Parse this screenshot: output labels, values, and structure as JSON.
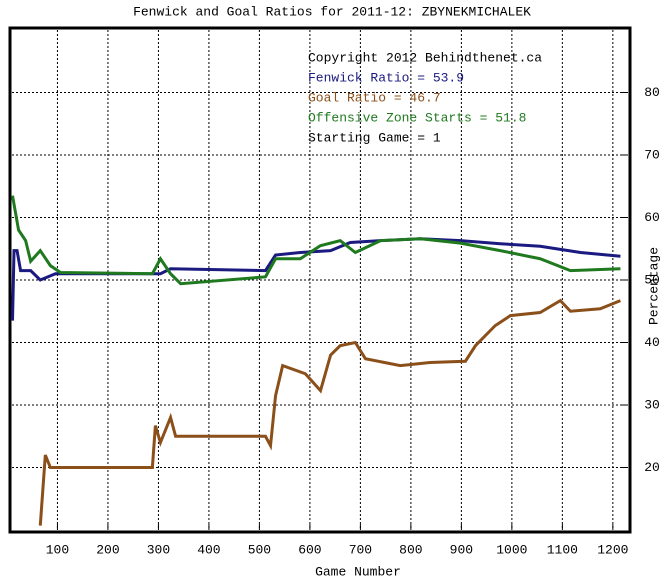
{
  "chart_data": {
    "type": "line",
    "title": "Fenwick and Goal Ratios for 2011-12: ZBYNEKMICHALEK",
    "x_label": "Game Number",
    "y_label": "Percentage",
    "annotations": [
      "Copyright 2012 Behindthenet.ca",
      "Starting Game = 1"
    ],
    "xlim": [
      10,
      1230
    ],
    "ylim": [
      10,
      90
    ],
    "xticks": [
      100,
      200,
      300,
      400,
      500,
      600,
      700,
      800,
      900,
      1000,
      1100,
      1200
    ],
    "yticks": [
      20,
      30,
      40,
      50,
      60,
      70,
      80
    ],
    "grid": true,
    "series": [
      {
        "name": "Fenwick Ratio = 53.9",
        "color": "#1a1a80",
        "x": [
          11,
          14,
          20,
          27,
          47,
          66,
          96,
          304,
          324,
          512,
          532,
          581,
          641,
          680,
          740,
          819,
          898,
          977,
          1056,
          1136,
          1215
        ],
        "values": [
          43.5,
          54.7,
          54.7,
          51.5,
          51.5,
          50,
          51,
          51,
          51.8,
          51.5,
          54,
          54.4,
          54.7,
          56,
          56.3,
          56.6,
          56.3,
          55.8,
          55.4,
          54.4,
          53.8
        ]
      },
      {
        "name": "Goal Ratio = 46.7",
        "color": "#8b4f1a",
        "x": [
          66,
          76,
          86,
          288,
          294,
          304,
          324,
          334,
          512,
          522,
          532,
          546,
          591,
          621,
          641,
          660,
          690,
          710,
          779,
          838,
          908,
          928,
          967,
          997,
          1056,
          1096,
          1116,
          1175,
          1215
        ],
        "values": [
          10.7,
          22,
          20,
          20,
          26.7,
          24,
          28,
          25,
          25,
          23.5,
          31.5,
          36.3,
          35,
          32.3,
          38,
          39.5,
          40,
          37.4,
          36.3,
          36.8,
          37,
          39.5,
          42.7,
          44.3,
          44.8,
          46.7,
          45,
          45.4,
          46.7
        ]
      },
      {
        "name": "Offensive Zone Starts = 51.8",
        "color": "#1f7a1f",
        "x": [
          11,
          23,
          37,
          47,
          66,
          86,
          106,
          288,
          304,
          324,
          344,
          512,
          532,
          581,
          621,
          660,
          690,
          740,
          819,
          898,
          977,
          1056,
          1116,
          1215
        ],
        "values": [
          63.5,
          58,
          56.3,
          53,
          54.7,
          52.3,
          51.2,
          51,
          53.4,
          51,
          49.4,
          50.5,
          53.4,
          53.4,
          55.5,
          56.3,
          54.4,
          56.3,
          56.6,
          55.9,
          54.7,
          53.4,
          51.5,
          51.8
        ]
      }
    ]
  }
}
